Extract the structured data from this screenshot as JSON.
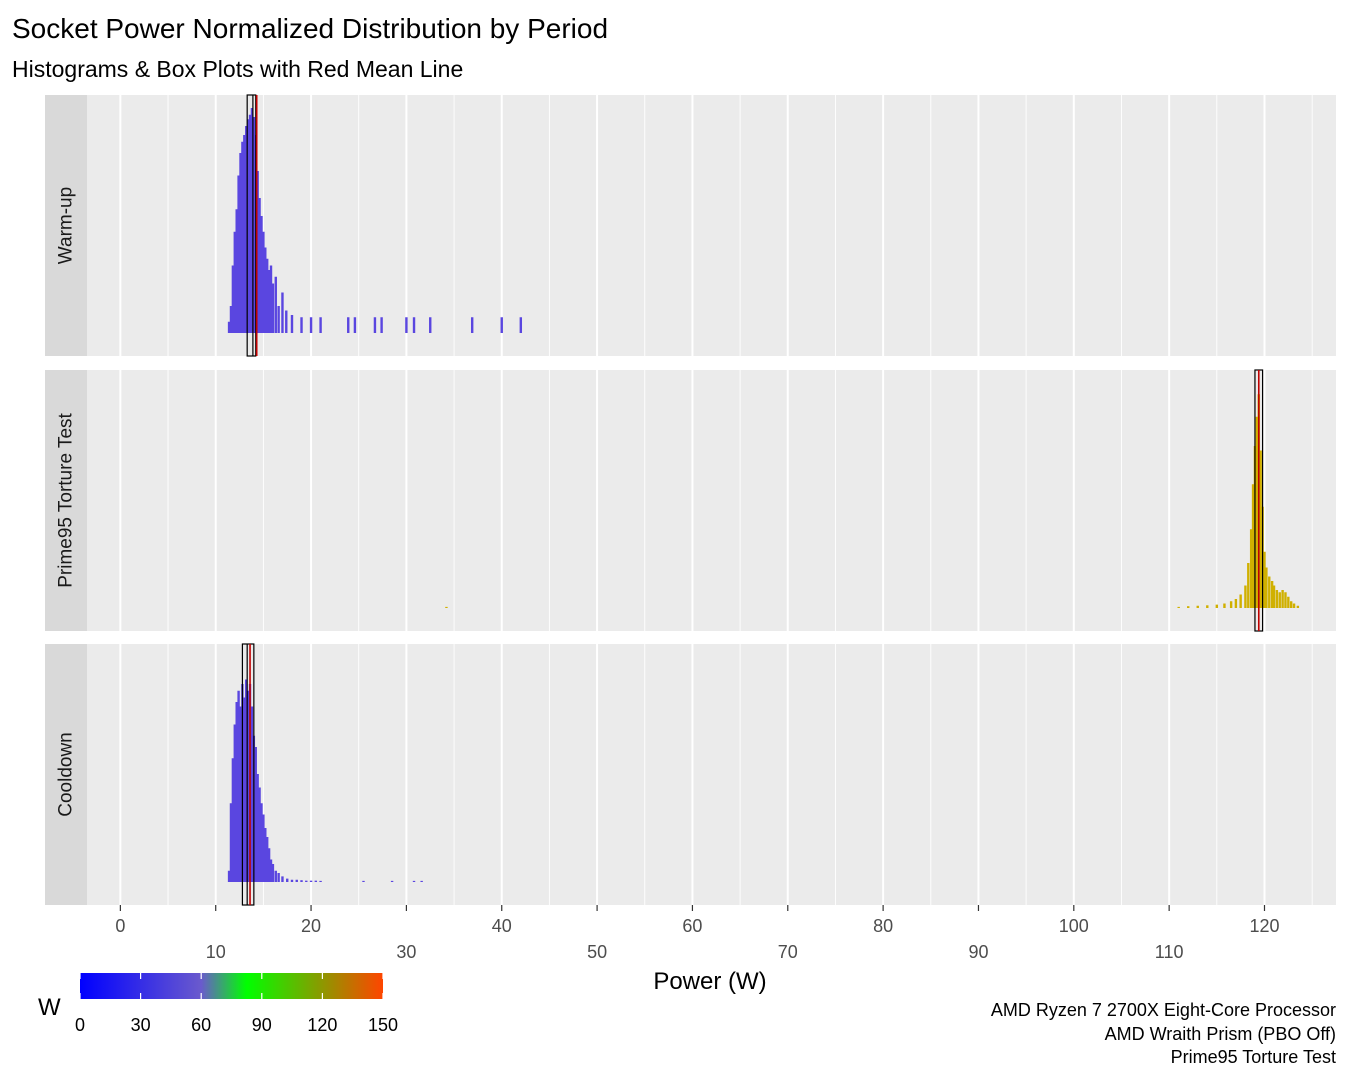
{
  "chart_data": {
    "type": "histogram",
    "title": "Socket Power Normalized Distribution by Period",
    "subtitle": "Histograms & Box Plots with Red Mean Line",
    "xlabel": "Power (W)",
    "xlim": [
      -3.5,
      127.5
    ],
    "x_ticks_row1": [
      0,
      20,
      40,
      60,
      80,
      100,
      120
    ],
    "x_ticks_row2": [
      10,
      30,
      50,
      70,
      90,
      110
    ],
    "grid": true,
    "legend": {
      "title": "W",
      "placement": "bottom-left",
      "type": "colorbar",
      "range": [
        0,
        150
      ],
      "ticks": [
        0,
        30,
        60,
        90,
        120,
        150
      ],
      "colors": [
        "#0000ff",
        "#6a5acd",
        "#00ff00",
        "#ff4500"
      ]
    },
    "caption": [
      "AMD Ryzen 7 2700X Eight-Core Processor",
      "AMD Wraith Prism (PBO Off)",
      "Prime95 Torture Test"
    ],
    "facets": [
      {
        "label": "Warm-up",
        "fill": "#5a46e0",
        "box": {
          "q1": 13.3,
          "median": 13.9,
          "q3": 14.2
        },
        "mean": 14.3,
        "histogram": [
          [
            11.4,
            0.05
          ],
          [
            11.6,
            0.12
          ],
          [
            11.8,
            0.3
          ],
          [
            12.0,
            0.45
          ],
          [
            12.2,
            0.55
          ],
          [
            12.4,
            0.7
          ],
          [
            12.6,
            0.8
          ],
          [
            12.8,
            0.85
          ],
          [
            13.0,
            0.88
          ],
          [
            13.2,
            0.92
          ],
          [
            13.4,
            0.95
          ],
          [
            13.6,
            0.97
          ],
          [
            13.8,
            1.0
          ],
          [
            14.0,
            0.96
          ],
          [
            14.2,
            0.88
          ],
          [
            14.4,
            0.72
          ],
          [
            14.6,
            0.6
          ],
          [
            14.8,
            0.52
          ],
          [
            15.0,
            0.45
          ],
          [
            15.2,
            0.38
          ],
          [
            15.4,
            0.33
          ],
          [
            15.6,
            0.28
          ],
          [
            15.8,
            0.3
          ],
          [
            16.0,
            0.22
          ],
          [
            16.3,
            0.25
          ],
          [
            16.6,
            0.12
          ],
          [
            17.0,
            0.18
          ],
          [
            17.4,
            0.1
          ],
          [
            18.0,
            0.08
          ],
          [
            19.0,
            0.07
          ],
          [
            20.0,
            0.07
          ],
          [
            21.0,
            0.07
          ],
          [
            23.9,
            0.07
          ],
          [
            24.6,
            0.07
          ],
          [
            26.7,
            0.07
          ],
          [
            27.4,
            0.07
          ],
          [
            30.0,
            0.07
          ],
          [
            30.8,
            0.07
          ],
          [
            32.5,
            0.07
          ],
          [
            36.9,
            0.07
          ],
          [
            40.0,
            0.07
          ],
          [
            42.0,
            0.07
          ]
        ]
      },
      {
        "label": "Prime95 Torture Test",
        "fill": "#d0b000",
        "box": {
          "q1": 119.0,
          "median": 119.4,
          "q3": 119.8
        },
        "mean": 119.4,
        "histogram": [
          [
            34.2,
            0.005
          ],
          [
            111.0,
            0.005
          ],
          [
            112.0,
            0.008
          ],
          [
            113.0,
            0.01
          ],
          [
            114.0,
            0.012
          ],
          [
            115.0,
            0.015
          ],
          [
            115.8,
            0.02
          ],
          [
            116.5,
            0.03
          ],
          [
            117.0,
            0.04
          ],
          [
            117.5,
            0.06
          ],
          [
            118.0,
            0.1
          ],
          [
            118.3,
            0.2
          ],
          [
            118.6,
            0.35
          ],
          [
            118.8,
            0.55
          ],
          [
            119.0,
            0.72
          ],
          [
            119.2,
            0.85
          ],
          [
            119.4,
            0.95
          ],
          [
            119.6,
            0.7
          ],
          [
            119.8,
            0.45
          ],
          [
            120.0,
            0.25
          ],
          [
            120.2,
            0.18
          ],
          [
            120.5,
            0.14
          ],
          [
            120.8,
            0.12
          ],
          [
            121.0,
            0.1
          ],
          [
            121.3,
            0.08
          ],
          [
            121.6,
            0.07
          ],
          [
            121.9,
            0.08
          ],
          [
            122.2,
            0.07
          ],
          [
            122.5,
            0.05
          ],
          [
            122.8,
            0.03
          ],
          [
            123.1,
            0.02
          ],
          [
            123.5,
            0.01
          ]
        ]
      },
      {
        "label": "Cooldown",
        "fill": "#5a46e0",
        "box": {
          "q1": 12.8,
          "median": 13.3,
          "q3": 14.0
        },
        "mean": 13.6,
        "histogram": [
          [
            11.4,
            0.05
          ],
          [
            11.6,
            0.35
          ],
          [
            11.8,
            0.55
          ],
          [
            12.0,
            0.7
          ],
          [
            12.2,
            0.8
          ],
          [
            12.4,
            0.85
          ],
          [
            12.6,
            0.78
          ],
          [
            12.8,
            0.88
          ],
          [
            13.0,
            0.82
          ],
          [
            13.2,
            0.9
          ],
          [
            13.4,
            0.85
          ],
          [
            13.6,
            0.88
          ],
          [
            13.8,
            0.78
          ],
          [
            14.0,
            0.65
          ],
          [
            14.2,
            0.6
          ],
          [
            14.4,
            0.48
          ],
          [
            14.6,
            0.42
          ],
          [
            14.8,
            0.35
          ],
          [
            15.0,
            0.3
          ],
          [
            15.2,
            0.24
          ],
          [
            15.4,
            0.2
          ],
          [
            15.6,
            0.15
          ],
          [
            15.8,
            0.1
          ],
          [
            16.0,
            0.08
          ],
          [
            16.3,
            0.05
          ],
          [
            16.6,
            0.04
          ],
          [
            17.0,
            0.025
          ],
          [
            17.5,
            0.015
          ],
          [
            18.0,
            0.01
          ],
          [
            18.5,
            0.01
          ],
          [
            19.0,
            0.008
          ],
          [
            19.5,
            0.006
          ],
          [
            20.0,
            0.006
          ],
          [
            20.5,
            0.006
          ],
          [
            21.0,
            0.005
          ],
          [
            25.5,
            0.005
          ],
          [
            28.5,
            0.005
          ],
          [
            30.8,
            0.005
          ],
          [
            31.6,
            0.005
          ]
        ]
      }
    ]
  }
}
